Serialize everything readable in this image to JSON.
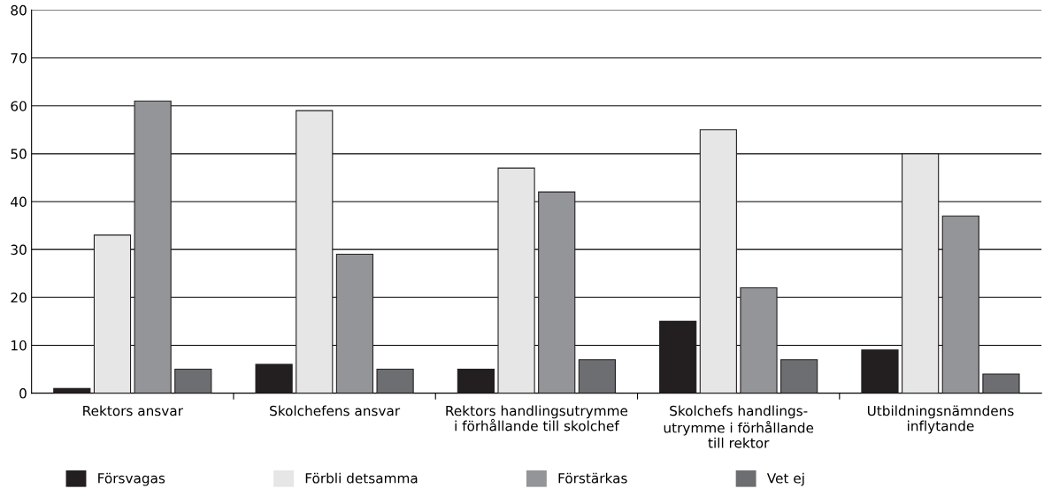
{
  "chart_data": {
    "type": "bar",
    "categories": [
      "Rektors ansvar",
      "Skolchefens ansvar",
      "Rektors handlingsutrymme\ni förhållande till skolchef",
      "Skolchefs handlings-\nutrymme i förhållande\ntill rektor",
      "Utbildningsnämndens\ninflytande"
    ],
    "series": [
      {
        "name": "Försvagas",
        "color": "#231f20",
        "values": [
          1,
          6,
          5,
          15,
          9
        ]
      },
      {
        "name": "Förbli detsamma",
        "color": "#e6e6e7",
        "values": [
          33,
          59,
          47,
          55,
          50
        ]
      },
      {
        "name": "Förstärkas",
        "color": "#939598",
        "values": [
          61,
          29,
          42,
          22,
          37
        ]
      },
      {
        "name": "Vet ej",
        "color": "#6d6e71",
        "values": [
          5,
          5,
          7,
          7,
          4
        ]
      }
    ],
    "ylim": [
      0,
      80
    ],
    "yticks": [
      0,
      10,
      20,
      30,
      40,
      50,
      60,
      70,
      80
    ],
    "grid": "y",
    "legend": "bottom"
  }
}
